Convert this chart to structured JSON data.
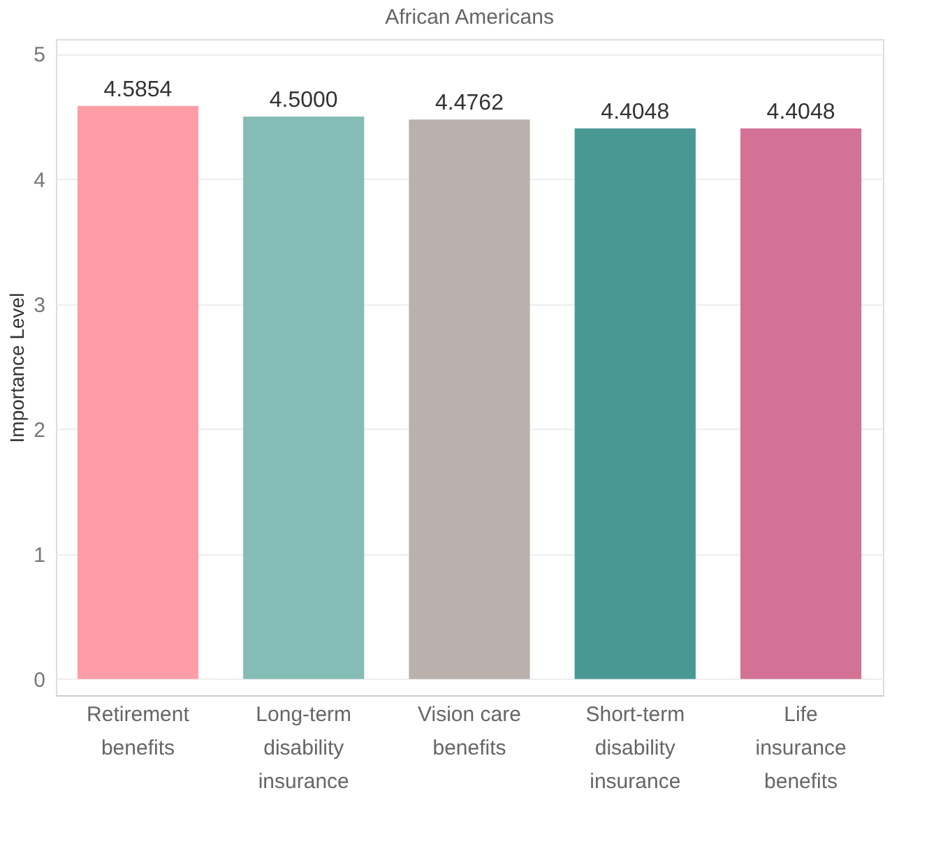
{
  "chart_data": {
    "type": "bar",
    "title": "African Americans",
    "ylabel": "Importance Level",
    "categories": [
      "Retirement benefits",
      "Long-term disability insurance",
      "Vision care benefits",
      "Short-term disability insurance",
      "Life insurance benefits"
    ],
    "values": [
      4.5854,
      4.5,
      4.4762,
      4.4048,
      4.4048
    ],
    "colors": [
      "#ff9da7",
      "#86bcb6",
      "#bab0ac",
      "#499894",
      "#d37295"
    ],
    "value_labels": [
      "4.5854",
      "4.5000",
      "4.4762",
      "4.4048",
      "4.4048"
    ],
    "ylim": [
      -0.13,
      5.12
    ],
    "yticks": [
      0,
      1,
      2,
      3,
      4,
      5
    ],
    "grid": "y"
  }
}
